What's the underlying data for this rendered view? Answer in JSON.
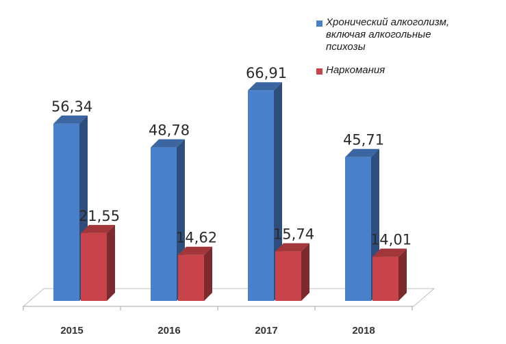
{
  "chart_data": {
    "type": "bar",
    "categories": [
      "2015",
      "2016",
      "2017",
      "2018"
    ],
    "series": [
      {
        "name": "Хронический алкоголизм, включая алкогольные психозы",
        "legend_lines": [
          "Хронический алкоголизм,",
          "включая алкогольные",
          "психозы"
        ],
        "color": "#4a7fc9",
        "values": [
          56.34,
          48.78,
          66.91,
          45.71
        ],
        "labels": [
          "56,34",
          "48,78",
          "66,91",
          "45,71"
        ]
      },
      {
        "name": "Наркомания",
        "legend_lines": [
          "Наркомания"
        ],
        "color": "#c9444a",
        "values": [
          21.55,
          14.62,
          15.74,
          14.01
        ],
        "labels": [
          "21,55",
          "14,62",
          "15,74",
          "14,01"
        ]
      }
    ],
    "ylim": [
      0,
      70
    ],
    "grid": false,
    "legend_position": "top-right",
    "style": "3d-column"
  }
}
